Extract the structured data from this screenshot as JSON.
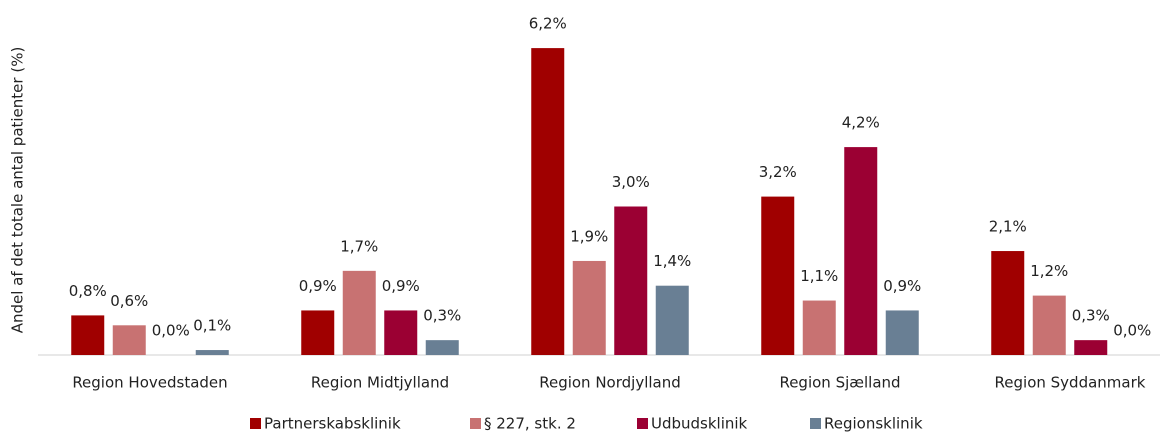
{
  "chart_data": {
    "type": "bar",
    "y_label": "Andel af det totale antal patienter (%)",
    "categories": [
      "Region Hovedstaden",
      "Region Midtjylland",
      "Region Nordjylland",
      "Region Sjælland",
      "Region Syddanmark"
    ],
    "series": [
      {
        "name": "Partnerskabsklinik",
        "color": "#a00000",
        "values": [
          0.8,
          0.9,
          6.2,
          3.2,
          2.1
        ],
        "value_labels": [
          "0,8%",
          "0,9%",
          "6,2%",
          "3,2%",
          "2,1%"
        ]
      },
      {
        "name": "§ 227, stk. 2",
        "color": "#c87272",
        "values": [
          0.6,
          1.7,
          1.9,
          1.1,
          1.2
        ],
        "value_labels": [
          "0,6%",
          "1,7%",
          "1,9%",
          "1,1%",
          "1,2%"
        ]
      },
      {
        "name": "Udbudsklinik",
        "color": "#9b0033",
        "values": [
          0.0,
          0.9,
          3.0,
          4.2,
          0.3
        ],
        "value_labels": [
          "0,0%",
          "0,9%",
          "3,0%",
          "4,2%",
          "0,3%"
        ]
      },
      {
        "name": "Regionsklinik",
        "color": "#697f94",
        "values": [
          0.1,
          0.3,
          1.4,
          0.9,
          0.0
        ],
        "value_labels": [
          "0,1%",
          "0,3%",
          "1,4%",
          "0,9%",
          "0,0%"
        ]
      }
    ],
    "ylim": [
      0,
      7
    ]
  }
}
